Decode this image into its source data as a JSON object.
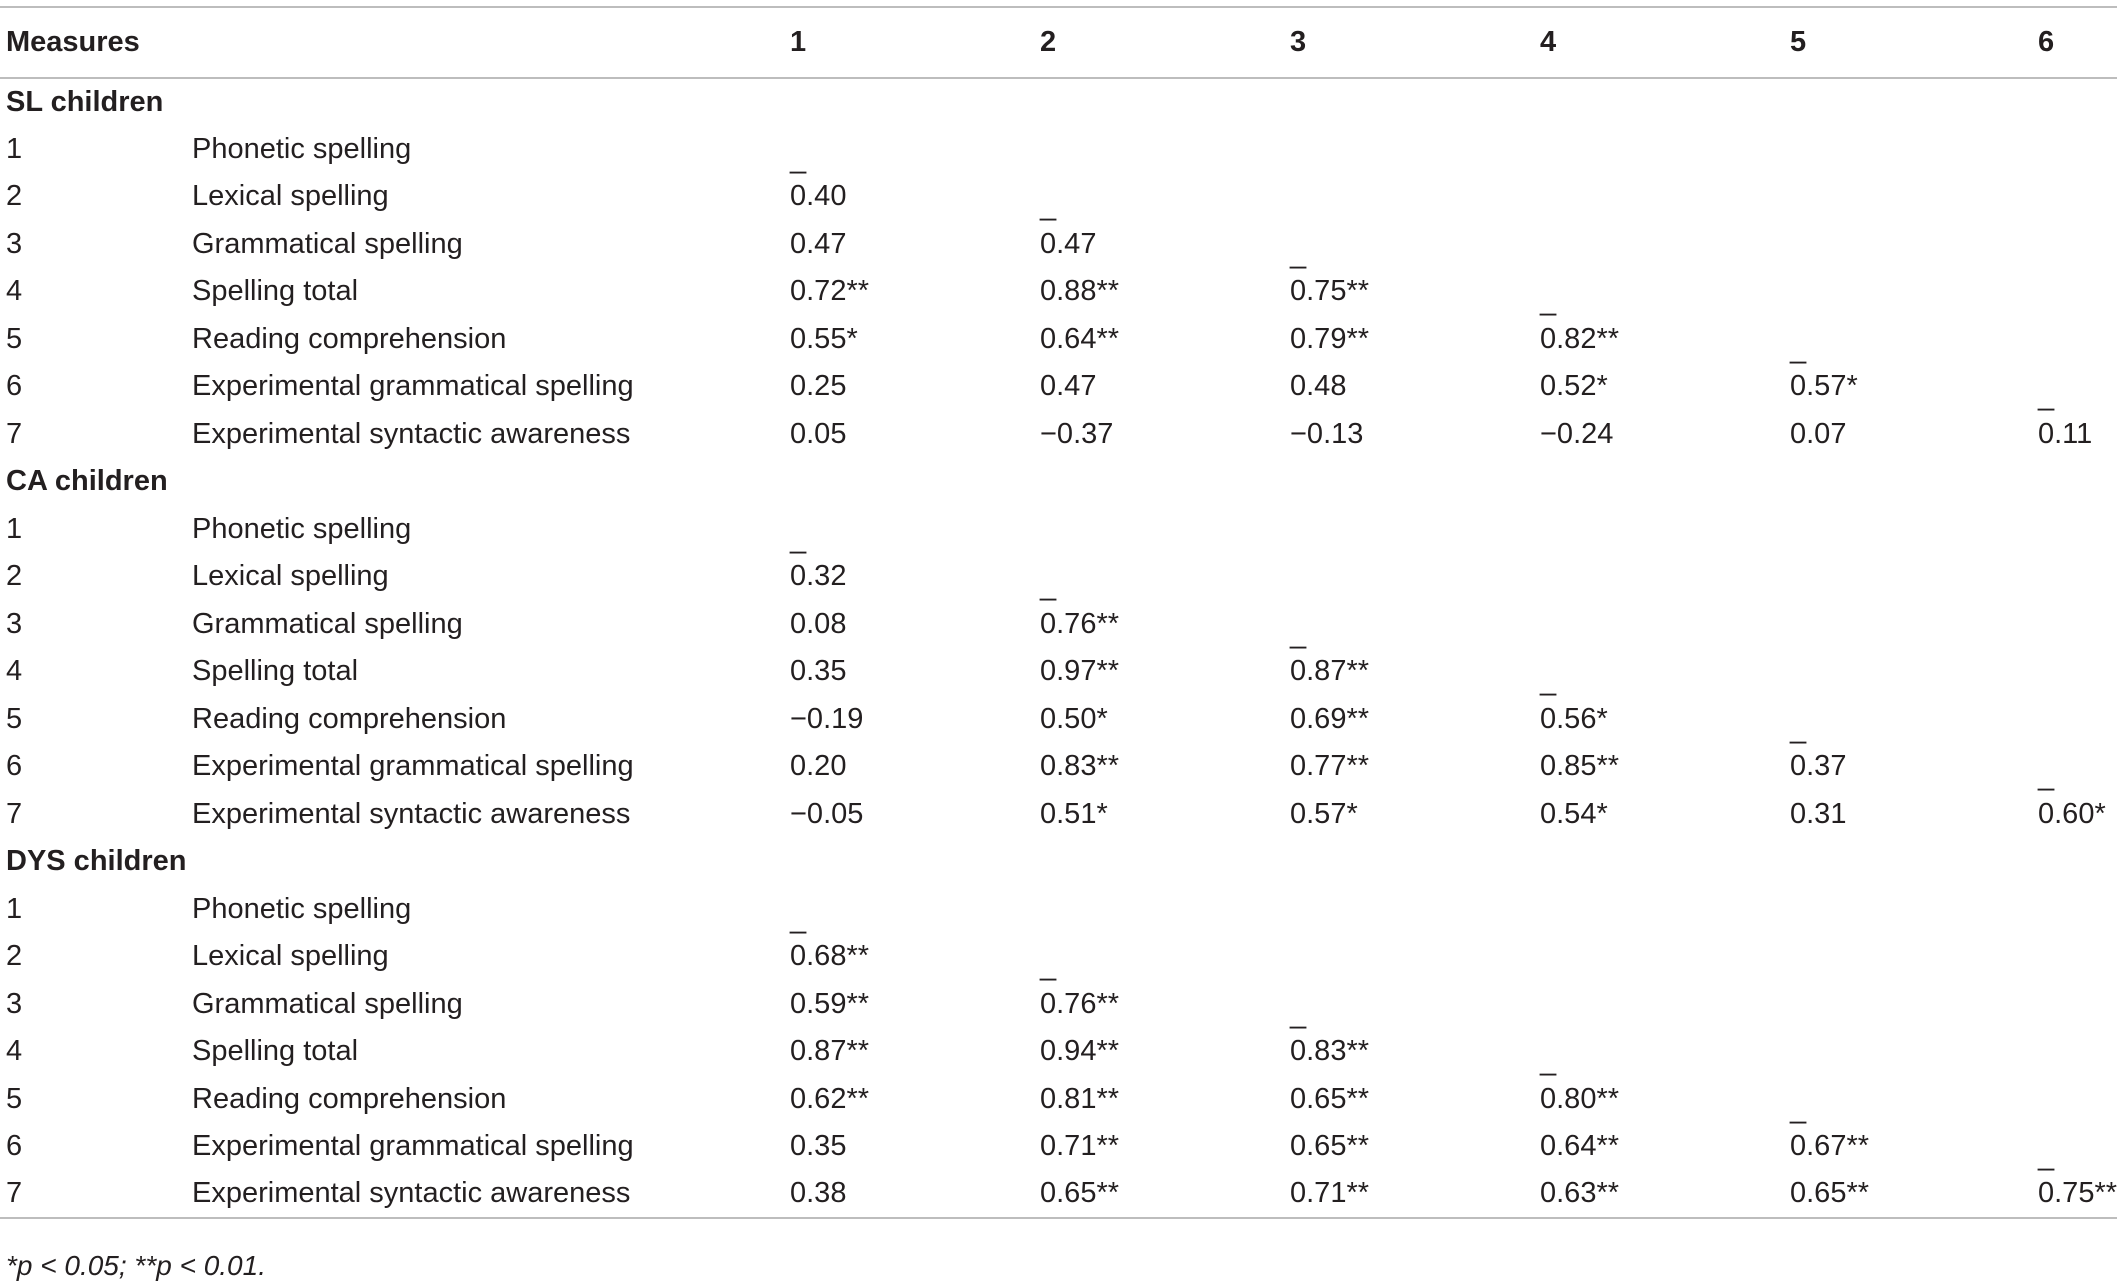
{
  "header": {
    "measures": "Measures",
    "cols": [
      "1",
      "2",
      "3",
      "4",
      "5",
      "6"
    ]
  },
  "groups": [
    {
      "title": "SL children",
      "rows": [
        {
          "idx": "1",
          "label": "Phonetic spelling",
          "values": [
            "_",
            "",
            "",
            "",
            "",
            ""
          ]
        },
        {
          "idx": "2",
          "label": "Lexical spelling",
          "values": [
            "0.40",
            "_",
            "",
            "",
            "",
            ""
          ]
        },
        {
          "idx": "3",
          "label": "Grammatical spelling",
          "values": [
            "0.47",
            "0.47",
            "_",
            "",
            "",
            ""
          ]
        },
        {
          "idx": "4",
          "label": "Spelling total",
          "values": [
            "0.72**",
            "0.88**",
            "0.75**",
            "_",
            "",
            ""
          ]
        },
        {
          "idx": "5",
          "label": "Reading comprehension",
          "values": [
            "0.55*",
            "0.64**",
            "0.79**",
            "0.82**",
            "_",
            ""
          ]
        },
        {
          "idx": "6",
          "label": "Experimental grammatical spelling",
          "values": [
            "0.25",
            "0.47",
            "0.48",
            "0.52*",
            "0.57*",
            "_"
          ]
        },
        {
          "idx": "7",
          "label": "Experimental syntactic awareness",
          "values": [
            "0.05",
            "−0.37",
            "−0.13",
            "−0.24",
            "0.07",
            "0.11"
          ]
        }
      ]
    },
    {
      "title": "CA children",
      "rows": [
        {
          "idx": "1",
          "label": "Phonetic spelling",
          "values": [
            "_",
            "",
            "",
            "",
            "",
            ""
          ]
        },
        {
          "idx": "2",
          "label": "Lexical spelling",
          "values": [
            "0.32",
            "_",
            "",
            "",
            "",
            ""
          ]
        },
        {
          "idx": "3",
          "label": "Grammatical spelling",
          "values": [
            "0.08",
            "0.76**",
            "_",
            "",
            "",
            ""
          ]
        },
        {
          "idx": "4",
          "label": "Spelling total",
          "values": [
            "0.35",
            "0.97**",
            "0.87**",
            "_",
            "",
            ""
          ]
        },
        {
          "idx": "5",
          "label": "Reading comprehension",
          "values": [
            "−0.19",
            "0.50*",
            "0.69**",
            "0.56*",
            "_",
            ""
          ]
        },
        {
          "idx": "6",
          "label": "Experimental grammatical spelling",
          "values": [
            "0.20",
            "0.83**",
            "0.77**",
            "0.85**",
            "0.37",
            "_"
          ]
        },
        {
          "idx": "7",
          "label": "Experimental syntactic awareness",
          "values": [
            "−0.05",
            "0.51*",
            "0.57*",
            "0.54*",
            "0.31",
            "0.60*"
          ]
        }
      ]
    },
    {
      "title": "DYS children",
      "rows": [
        {
          "idx": "1",
          "label": "Phonetic spelling",
          "values": [
            "_",
            "",
            "",
            "",
            "",
            ""
          ]
        },
        {
          "idx": "2",
          "label": "Lexical spelling",
          "values": [
            "0.68**",
            "_",
            "",
            "",
            "",
            ""
          ]
        },
        {
          "idx": "3",
          "label": "Grammatical spelling",
          "values": [
            "0.59**",
            "0.76**",
            "_",
            "",
            "",
            ""
          ]
        },
        {
          "idx": "4",
          "label": "Spelling total",
          "values": [
            "0.87**",
            "0.94**",
            "0.83**",
            "_",
            "",
            ""
          ]
        },
        {
          "idx": "5",
          "label": "Reading comprehension",
          "values": [
            "0.62**",
            "0.81**",
            "0.65**",
            "0.80**",
            "_",
            ""
          ]
        },
        {
          "idx": "6",
          "label": "Experimental grammatical spelling",
          "values": [
            "0.35",
            "0.71**",
            "0.65**",
            "0.64**",
            "0.67**",
            "_"
          ]
        },
        {
          "idx": "7",
          "label": "Experimental syntactic awareness",
          "values": [
            "0.38",
            "0.65**",
            "0.71**",
            "0.63**",
            "0.65**",
            "0.75**"
          ]
        }
      ]
    }
  ],
  "footnote": "*p < 0.05; **p < 0.01."
}
